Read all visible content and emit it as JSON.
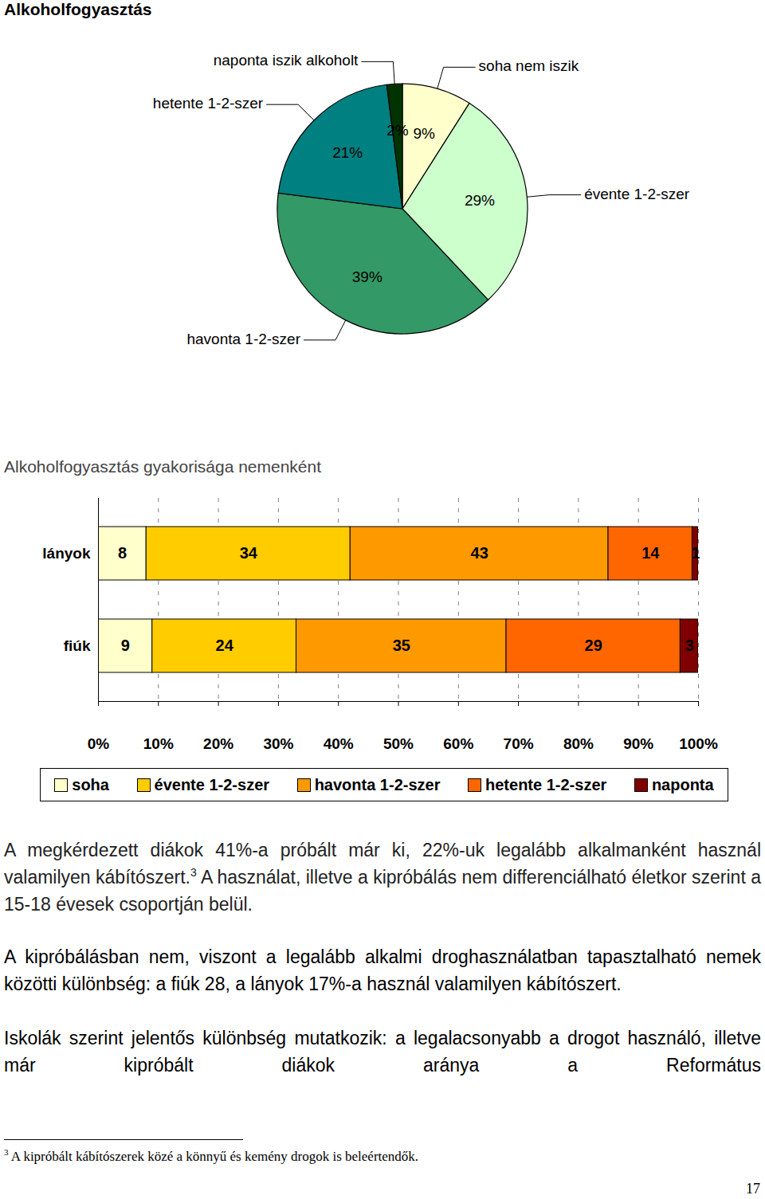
{
  "chart_data": [
    {
      "type": "pie",
      "title": "Alkoholfogyasztás",
      "categories": [
        "soha nem iszik",
        "évente 1-2-szer",
        "havonta 1-2-szer",
        "hetente 1-2-szer",
        "naponta iszik alkoholt"
      ],
      "values": [
        9,
        29,
        39,
        21,
        2
      ],
      "value_labels": [
        "9%",
        "29%",
        "39%",
        "21%",
        "2%"
      ],
      "colors": [
        "#FFFFCC",
        "#CCFFCC",
        "#339966",
        "#008080",
        "#003300"
      ],
      "data_labels": true
    },
    {
      "type": "bar",
      "title": "Alkoholfogyasztás gyakorisága nemenként",
      "orientation": "horizontal",
      "stacked": true,
      "categories": [
        "lányok",
        "fiúk"
      ],
      "series": [
        {
          "name": "soha",
          "color": "#FFFFCC",
          "values": [
            8,
            9
          ]
        },
        {
          "name": "évente 1-2-szer",
          "color": "#FFCC00",
          "values": [
            34,
            24
          ]
        },
        {
          "name": "havonta 1-2-szer",
          "color": "#FF9900",
          "values": [
            43,
            35
          ]
        },
        {
          "name": "hetente 1-2-szer",
          "color": "#FF6600",
          "values": [
            14,
            29
          ]
        },
        {
          "name": "naponta",
          "color": "#800000",
          "values": [
            1,
            3
          ]
        }
      ],
      "xlim": [
        0,
        100
      ],
      "xticks": [
        {
          "value": 0,
          "label": "0%"
        },
        {
          "value": 10,
          "label": "10%"
        },
        {
          "value": 20,
          "label": "20%"
        },
        {
          "value": 30,
          "label": "30%"
        },
        {
          "value": 40,
          "label": "40%"
        },
        {
          "value": 50,
          "label": "50%"
        },
        {
          "value": 60,
          "label": "60%"
        },
        {
          "value": 70,
          "label": "70%"
        },
        {
          "value": 80,
          "label": "80%"
        },
        {
          "value": 90,
          "label": "90%"
        },
        {
          "value": 100,
          "label": "100%"
        }
      ],
      "grid": true,
      "legend": "bottom",
      "data_labels": true
    }
  ],
  "document": {
    "paragraphs": [
      [
        {
          "text": "A megkérdezett diákok 41%-a próbált már ki, 22%-uk legalább alkalmanként használ valamilyen kábítószert."
        },
        {
          "footnote_ref": "3"
        },
        {
          "text": " A használat, illetve a kipróbálás nem differenciálható életkor szerint a 15-18 évesek csoportján belül."
        }
      ],
      [
        {
          "text": "A kipróbálásban nem, viszont a legalább alkalmi droghasználatban tapasztalható nemek közötti különbség: a fiúk 28, a lányok 17%-a használ valamilyen kábítószert."
        }
      ],
      [
        {
          "text": "Iskolák szerint jelentős különbség mutatkozik: a legalacsonyabb a drogot használó, illetve már kipróbált diákok aránya a Református"
        }
      ]
    ],
    "footnote": {
      "number": "3",
      "text": "A kipróbált kábítószerek közé a könnyű és kemény drogok is beleértendők."
    },
    "page_number": "17"
  }
}
